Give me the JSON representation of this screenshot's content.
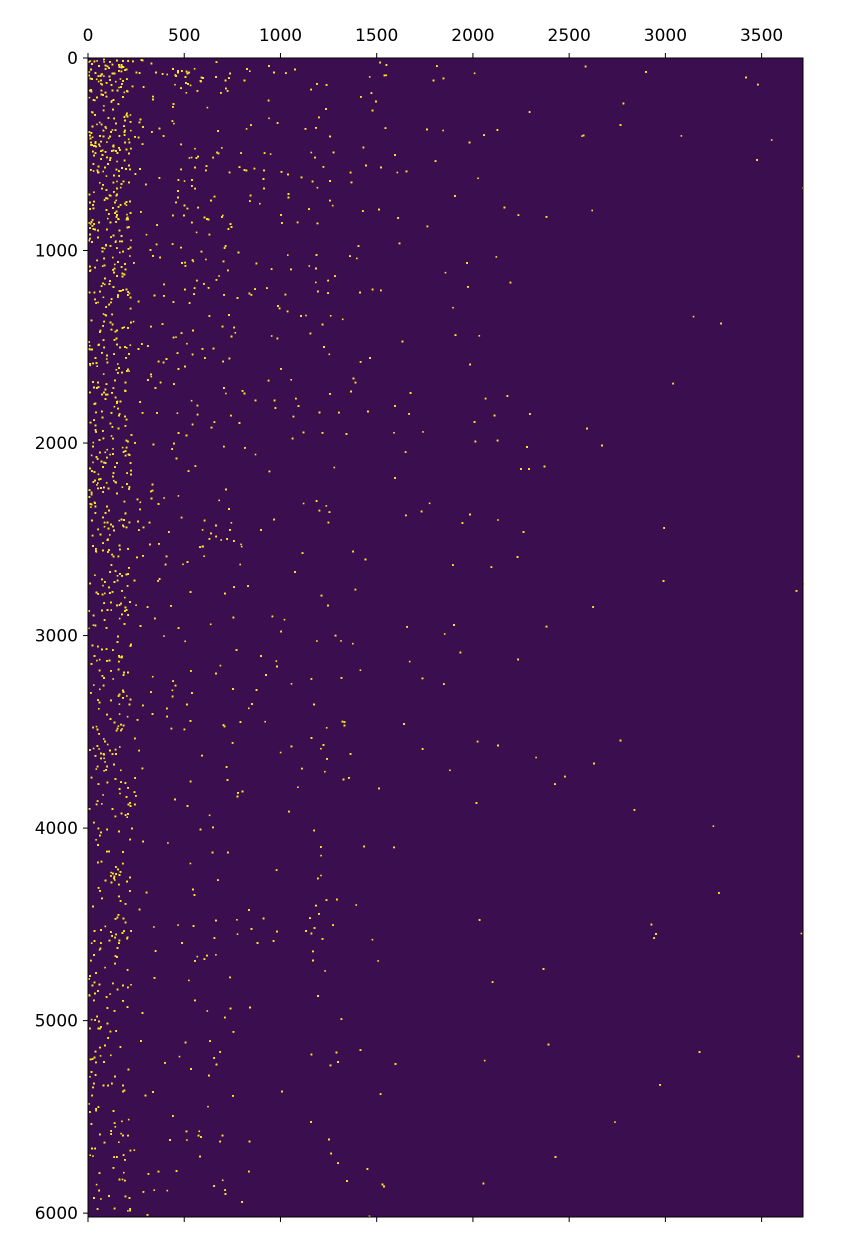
{
  "chart_data": {
    "type": "heatmap",
    "subtype": "sparse-matrix spy plot",
    "title": "",
    "xlabel": "",
    "ylabel": "",
    "x_axis_position": "top",
    "y_axis_inverted": true,
    "xlim": [
      0,
      3715
    ],
    "ylim": [
      6020,
      0
    ],
    "x_ticks": [
      0,
      500,
      1000,
      1500,
      2000,
      2500,
      3000,
      3500
    ],
    "x_tick_labels": [
      "0",
      "500",
      "1000",
      "1500",
      "2000",
      "2500",
      "3000",
      "3500"
    ],
    "y_ticks": [
      0,
      1000,
      2000,
      3000,
      4000,
      5000,
      6000
    ],
    "y_tick_labels": [
      "0",
      "1000",
      "2000",
      "3000",
      "4000",
      "5000",
      "6000"
    ],
    "grid": false,
    "legend": "none",
    "colors": {
      "background": "#3b0f4f",
      "nonzero": "#fde725",
      "axes": "#000000"
    },
    "density_model": {
      "description": "Density of nonzero entries, estimated from the image",
      "dense_columns_below": 220,
      "column_decay_scale": 900,
      "row_decay_scale": 4200,
      "dense_column_bands": [
        {
          "from": 0,
          "to": 220
        },
        {
          "from": 460,
          "to": 560
        },
        {
          "from": 700,
          "to": 760
        },
        {
          "from": 1150,
          "to": 1300
        }
      ],
      "dense_row_bands": [
        {
          "from": 0,
          "to": 120
        },
        {
          "from": 350,
          "to": 420
        },
        {
          "from": 560,
          "to": 620
        },
        {
          "from": 760,
          "to": 830
        },
        {
          "from": 1180,
          "to": 1250
        },
        {
          "from": 2520,
          "to": 2560
        },
        {
          "from": 3100,
          "to": 3140
        },
        {
          "from": 3440,
          "to": 3480
        },
        {
          "from": 3720,
          "to": 3770
        },
        {
          "from": 4880,
          "to": 4900
        }
      ]
    }
  }
}
